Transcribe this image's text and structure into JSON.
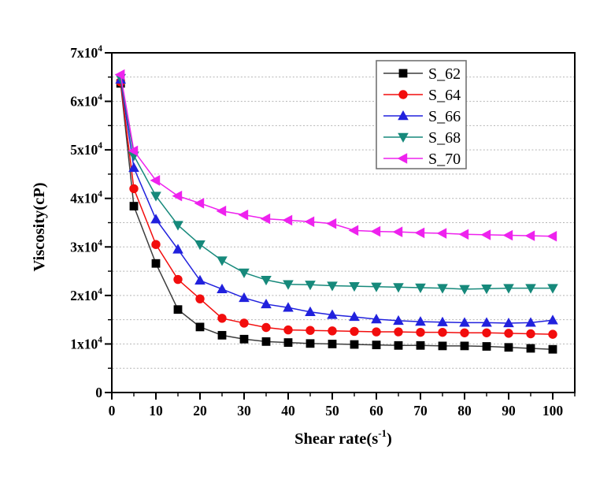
{
  "figure": {
    "background": "#ffffff",
    "axis_color": "#000000",
    "grid_color": "#b3b3b3"
  },
  "chart_data": {
    "type": "line",
    "title": "",
    "xlabel": {
      "pre": "Shear rate(s",
      "sup": "-1",
      "post": ")"
    },
    "ylabel": "Viscosity(cP)",
    "xlim": [
      0,
      105
    ],
    "ylim": [
      0,
      70000
    ],
    "grid": {
      "horizontal_dashed": true,
      "step": 5000,
      "color": "#b3b3b3"
    },
    "x_major_ticks": [
      {
        "v": 0,
        "text": "0"
      },
      {
        "v": 10,
        "text": "10"
      },
      {
        "v": 20,
        "text": "20"
      },
      {
        "v": 30,
        "text": "30"
      },
      {
        "v": 40,
        "text": "40"
      },
      {
        "v": 50,
        "text": "50"
      },
      {
        "v": 60,
        "text": "60"
      },
      {
        "v": 70,
        "text": "70"
      },
      {
        "v": 80,
        "text": "80"
      },
      {
        "v": 90,
        "text": "90"
      },
      {
        "v": 100,
        "text": "100"
      }
    ],
    "x_minor_step": 5,
    "y_major_ticks": [
      {
        "v": 0,
        "text": "0",
        "sup": ""
      },
      {
        "v": 10000,
        "text": "1x10",
        "sup": "4"
      },
      {
        "v": 20000,
        "text": "2x10",
        "sup": "4"
      },
      {
        "v": 30000,
        "text": "3x10",
        "sup": "4"
      },
      {
        "v": 40000,
        "text": "4x10",
        "sup": "4"
      },
      {
        "v": 50000,
        "text": "5x10",
        "sup": "4"
      },
      {
        "v": 60000,
        "text": "6x10",
        "sup": "4"
      },
      {
        "v": 70000,
        "text": "7x10",
        "sup": "4"
      }
    ],
    "y_minor_step": 5000,
    "legend": {
      "position": "top-right-inside",
      "entries": [
        "S_62",
        "S_64",
        "S_66",
        "S_68",
        "S_70"
      ]
    },
    "x": [
      2,
      5,
      10,
      15,
      20,
      25,
      30,
      35,
      40,
      45,
      50,
      55,
      60,
      65,
      70,
      75,
      80,
      85,
      90,
      95,
      100
    ],
    "series": [
      {
        "name": "S_62",
        "color": "#000000",
        "line_color": "#3d3d3d",
        "marker": "square",
        "values": [
          63700,
          38400,
          26600,
          17100,
          13500,
          11800,
          11000,
          10500,
          10300,
          10100,
          10000,
          9900,
          9800,
          9700,
          9700,
          9600,
          9600,
          9500,
          9300,
          9100,
          8900
        ]
      },
      {
        "name": "S_64",
        "color": "#f20d0d",
        "line_color": "#f20d0d",
        "marker": "circle",
        "values": [
          64000,
          42000,
          30500,
          23300,
          19300,
          15300,
          14300,
          13400,
          12900,
          12800,
          12700,
          12600,
          12500,
          12500,
          12400,
          12400,
          12300,
          12300,
          12200,
          12100,
          12000
        ]
      },
      {
        "name": "S_66",
        "color": "#2121dd",
        "line_color": "#2121dd",
        "marker": "triangle-up",
        "values": [
          64500,
          46300,
          35700,
          29500,
          23100,
          21300,
          19500,
          18200,
          17500,
          16600,
          16000,
          15600,
          15100,
          14800,
          14600,
          14500,
          14400,
          14400,
          14300,
          14400,
          14900
        ]
      },
      {
        "name": "S_68",
        "color": "#16897b",
        "line_color": "#16897b",
        "marker": "triangle-down",
        "values": [
          64800,
          48800,
          40500,
          34500,
          30500,
          27200,
          24700,
          23200,
          22300,
          22200,
          22000,
          21900,
          21800,
          21700,
          21600,
          21500,
          21300,
          21400,
          21500,
          21500,
          21500
        ]
      },
      {
        "name": "S_70",
        "color": "#ee22ee",
        "line_color": "#ee22ee",
        "marker": "triangle-left",
        "values": [
          65500,
          49800,
          43700,
          40500,
          39000,
          37400,
          36600,
          35800,
          35500,
          35200,
          34800,
          33400,
          33200,
          33100,
          32900,
          32800,
          32600,
          32500,
          32400,
          32300,
          32200
        ]
      }
    ]
  }
}
